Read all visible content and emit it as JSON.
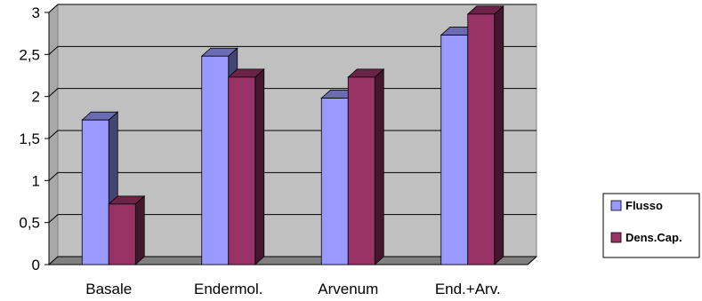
{
  "chart_data": {
    "type": "bar",
    "categories": [
      "Basale",
      "Endermol.",
      "Arvenum",
      "End.+Arv."
    ],
    "series": [
      {
        "name": "Flusso",
        "values": [
          1.72,
          2.48,
          1.98,
          2.73
        ]
      },
      {
        "name": "Dens.Cap.",
        "values": [
          0.72,
          2.23,
          2.23,
          2.98
        ]
      }
    ],
    "ylim": [
      0,
      3
    ],
    "yticks": [
      "0",
      "0,5",
      "1",
      "1,5",
      "2",
      "2,5",
      "3"
    ],
    "xlabel": "",
    "ylabel": "",
    "grid": true,
    "legend": "right",
    "colors": {
      "Flusso": "#9999ff",
      "Dens.Cap.": "#993366",
      "plot_background": "#c0c0c0"
    }
  }
}
